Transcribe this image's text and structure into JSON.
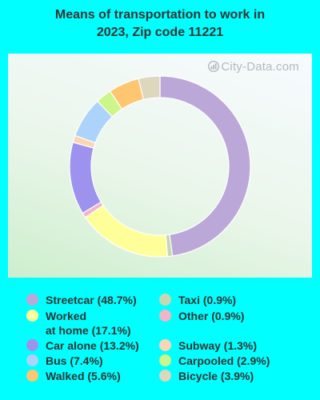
{
  "chart_data": {
    "type": "pie",
    "title_lines": [
      "Means of transportation to work in",
      "2023, Zip code 11221"
    ],
    "watermark": "City-Data.com",
    "slices": [
      {
        "label": "Streetcar",
        "value": 48.7,
        "color": "#bca8d8",
        "legend_text": "Streetcar (48.7%)"
      },
      {
        "label": "Taxi",
        "value": 0.9,
        "color": "#c7d8b0",
        "legend_text": "Taxi (0.9%)"
      },
      {
        "label": "Worked at home",
        "value": 17.1,
        "color": "#ffff99",
        "legend_text": "Worked\nat home (17.1%)"
      },
      {
        "label": "Other",
        "value": 0.9,
        "color": "#f4b4c4",
        "legend_text": "Other (0.9%)"
      },
      {
        "label": "Car alone",
        "value": 13.2,
        "color": "#9d93ee",
        "legend_text": "Car alone (13.2%)"
      },
      {
        "label": "Subway",
        "value": 1.3,
        "color": "#fcd5b5",
        "legend_text": "Subway (1.3%)"
      },
      {
        "label": "Bus",
        "value": 7.4,
        "color": "#acd3fa",
        "legend_text": "Bus (7.4%)"
      },
      {
        "label": "Carpooled",
        "value": 2.9,
        "color": "#ccf58a",
        "legend_text": "Carpooled (2.9%)"
      },
      {
        "label": "Walked",
        "value": 5.6,
        "color": "#ffc671",
        "legend_text": "Walked (5.6%)"
      },
      {
        "label": "Bicycle",
        "value": 3.9,
        "color": "#dcd7bd",
        "legend_text": "Bicycle (3.9%)"
      }
    ],
    "legend_columns": [
      [
        "Streetcar",
        "Worked at home",
        "Car alone",
        "Bus",
        "Walked"
      ],
      [
        "Taxi",
        "Other",
        "Subway",
        "Carpooled",
        "Bicycle"
      ]
    ]
  }
}
